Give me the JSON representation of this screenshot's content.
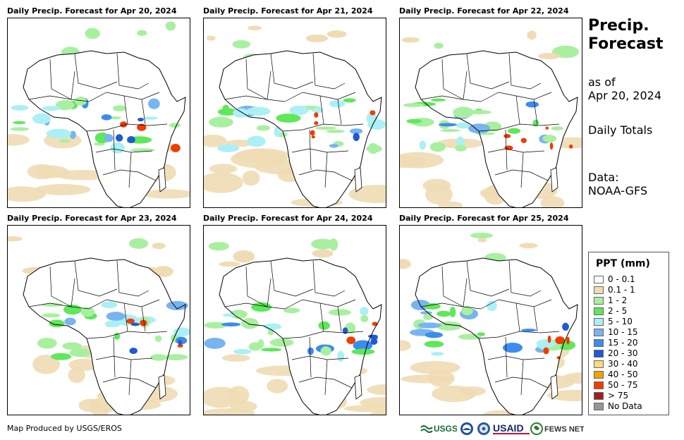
{
  "panels": [
    {
      "title": "Daily Precip. Forecast for Apr 20, 2024"
    },
    {
      "title": "Daily Precip. Forecast for Apr 21, 2024"
    },
    {
      "title": "Daily Precip. Forecast for Apr 22, 2024"
    },
    {
      "title": "Daily Precip. Forecast for Apr 23, 2024"
    },
    {
      "title": "Daily Precip. Forecast for Apr 24, 2024"
    },
    {
      "title": "Daily Precip. Forecast for Apr 25, 2024"
    }
  ],
  "side": {
    "title_line1": "Precip.",
    "title_line2": "Forecast",
    "asof_line1": "as of",
    "asof_line2": "Apr 20, 2024",
    "totals": "Daily Totals",
    "data_line1": "Data:",
    "data_line2": "NOAA-GFS"
  },
  "legend": {
    "title": "PPT (mm)",
    "items": [
      {
        "label": "0 - 0.1",
        "color": "#ffffff"
      },
      {
        "label": "0.1 - 1",
        "color": "#f0dcb4"
      },
      {
        "label": "1 - 2",
        "color": "#a8f0a0"
      },
      {
        "label": "2 - 5",
        "color": "#5ee85a"
      },
      {
        "label": "5 - 10",
        "color": "#aaf0f5"
      },
      {
        "label": "10 - 15",
        "color": "#78b4f0"
      },
      {
        "label": "15 - 20",
        "color": "#3c8cf0"
      },
      {
        "label": "20 - 30",
        "color": "#1e5ad2"
      },
      {
        "label": "30 - 40",
        "color": "#fadc78"
      },
      {
        "label": "40 - 50",
        "color": "#f5a000"
      },
      {
        "label": "50 - 75",
        "color": "#f03c00"
      },
      {
        "label": "> 75",
        "color": "#a01e1e"
      },
      {
        "label": "No Data",
        "color": "#969696"
      }
    ]
  },
  "footer": {
    "credit": "Map Produced by USGS/EROS",
    "logo_usgs": "USGS",
    "logo_usaid": "USAID",
    "logo_fews": "FEWS NET"
  }
}
